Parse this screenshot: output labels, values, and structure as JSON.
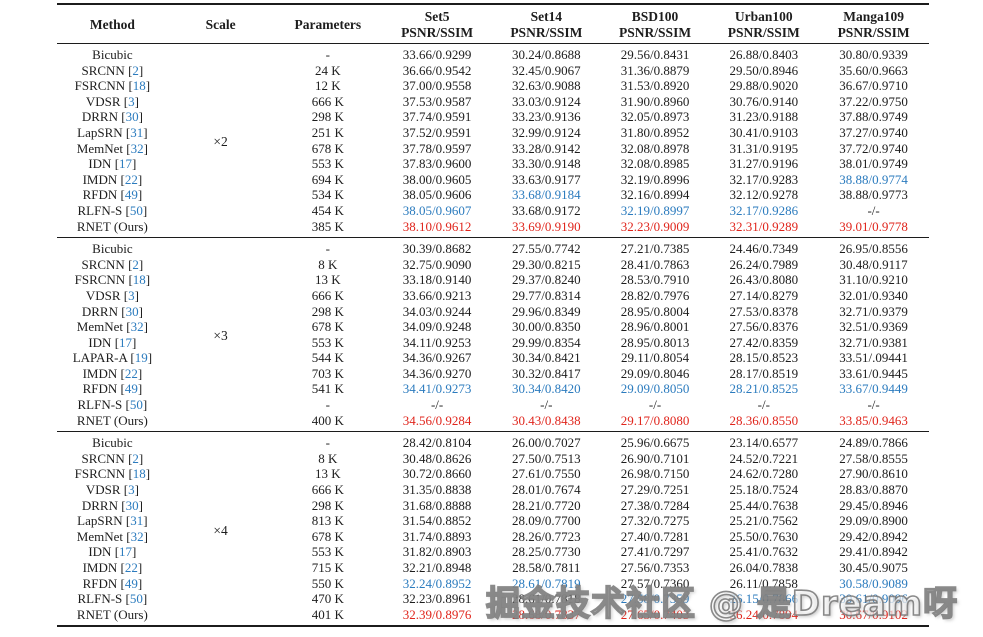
{
  "colors": {
    "best_red": "#e0251c",
    "second_blue": "#2b7bbe",
    "citation_blue": "#2b7bbe",
    "text": "#1d1d1d",
    "rule": "#1c1c1c"
  },
  "header": {
    "columns": [
      {
        "label": "Method",
        "sub": ""
      },
      {
        "label": "Scale",
        "sub": ""
      },
      {
        "label": "Parameters",
        "sub": ""
      },
      {
        "label": "Set5",
        "sub": "PSNR/SSIM"
      },
      {
        "label": "Set14",
        "sub": "PSNR/SSIM"
      },
      {
        "label": "BSD100",
        "sub": "PSNR/SSIM"
      },
      {
        "label": "Urban100",
        "sub": "PSNR/SSIM"
      },
      {
        "label": "Manga109",
        "sub": "PSNR/SSIM"
      }
    ]
  },
  "groups": [
    {
      "scale": "×2",
      "rows": [
        {
          "method": "Bicubic",
          "cite": "",
          "params": "-",
          "cells": [
            "33.66/0.9299",
            "30.24/0.8688",
            "29.56/0.8431",
            "26.88/0.8403",
            "30.80/0.9339"
          ],
          "colors": [
            "k",
            "k",
            "k",
            "k",
            "k"
          ]
        },
        {
          "method": "SRCNN",
          "cite": "2",
          "params": "24 K",
          "cells": [
            "36.66/0.9542",
            "32.45/0.9067",
            "31.36/0.8879",
            "29.50/0.8946",
            "35.60/0.9663"
          ],
          "colors": [
            "k",
            "k",
            "k",
            "k",
            "k"
          ]
        },
        {
          "method": "FSRCNN",
          "cite": "18",
          "params": "12 K",
          "cells": [
            "37.00/0.9558",
            "32.63/0.9088",
            "31.53/0.8920",
            "29.88/0.9020",
            "36.67/0.9710"
          ],
          "colors": [
            "k",
            "k",
            "k",
            "k",
            "k"
          ]
        },
        {
          "method": "VDSR",
          "cite": "3",
          "params": "666 K",
          "cells": [
            "37.53/0.9587",
            "33.03/0.9124",
            "31.90/0.8960",
            "30.76/0.9140",
            "37.22/0.9750"
          ],
          "colors": [
            "k",
            "k",
            "k",
            "k",
            "k"
          ]
        },
        {
          "method": "DRRN",
          "cite": "30",
          "params": "298 K",
          "cells": [
            "37.74/0.9591",
            "33.23/0.9136",
            "32.05/0.8973",
            "31.23/0.9188",
            "37.88/0.9749"
          ],
          "colors": [
            "k",
            "k",
            "k",
            "k",
            "k"
          ]
        },
        {
          "method": "LapSRN",
          "cite": "31",
          "params": "251 K",
          "cells": [
            "37.52/0.9591",
            "32.99/0.9124",
            "31.80/0.8952",
            "30.41/0.9103",
            "37.27/0.9740"
          ],
          "colors": [
            "k",
            "k",
            "k",
            "k",
            "k"
          ]
        },
        {
          "method": "MemNet",
          "cite": "32",
          "params": "678 K",
          "cells": [
            "37.78/0.9597",
            "33.28/0.9142",
            "32.08/0.8978",
            "31.31/0.9195",
            "37.72/0.9740"
          ],
          "colors": [
            "k",
            "k",
            "k",
            "k",
            "k"
          ]
        },
        {
          "method": "IDN",
          "cite": "17",
          "params": "553 K",
          "cells": [
            "37.83/0.9600",
            "33.30/0.9148",
            "32.08/0.8985",
            "31.27/0.9196",
            "38.01/0.9749"
          ],
          "colors": [
            "k",
            "k",
            "k",
            "k",
            "k"
          ]
        },
        {
          "method": "IMDN",
          "cite": "22",
          "params": "694 K",
          "cells": [
            "38.00/0.9605",
            "33.63/0.9177",
            "32.19/0.8996",
            "32.17/0.9283",
            "38.88/0.9774"
          ],
          "colors": [
            "k",
            "k",
            "k",
            "k",
            "b"
          ]
        },
        {
          "method": "RFDN",
          "cite": "49",
          "params": "534 K",
          "cells": [
            "38.05/0.9606",
            "33.68/0.9184",
            "32.16/0.8994",
            "32.12/0.9278",
            "38.88/0.9773"
          ],
          "colors": [
            "k",
            "b",
            "k",
            "k",
            "k"
          ]
        },
        {
          "method": "RLFN-S",
          "cite": "50",
          "params": "454 K",
          "cells": [
            "38.05/0.9607",
            "33.68/0.9172",
            "32.19/0.8997",
            "32.17/0.9286",
            "-/-"
          ],
          "colors": [
            "b",
            "k",
            "b",
            "b",
            "k"
          ]
        },
        {
          "method": "RNET (Ours)",
          "cite": "",
          "params": "385 K",
          "cells": [
            "38.10/0.9612",
            "33.69/0.9190",
            "32.23/0.9009",
            "32.31/0.9289",
            "39.01/0.9778"
          ],
          "colors": [
            "r",
            "r",
            "r",
            "r",
            "r"
          ]
        }
      ]
    },
    {
      "scale": "×3",
      "rows": [
        {
          "method": "Bicubic",
          "cite": "",
          "params": "-",
          "cells": [
            "30.39/0.8682",
            "27.55/0.7742",
            "27.21/0.7385",
            "24.46/0.7349",
            "26.95/0.8556"
          ],
          "colors": [
            "k",
            "k",
            "k",
            "k",
            "k"
          ]
        },
        {
          "method": "SRCNN",
          "cite": "2",
          "params": "8 K",
          "cells": [
            "32.75/0.9090",
            "29.30/0.8215",
            "28.41/0.7863",
            "26.24/0.7989",
            "30.48/0.9117"
          ],
          "colors": [
            "k",
            "k",
            "k",
            "k",
            "k"
          ]
        },
        {
          "method": "FSRCNN",
          "cite": "18",
          "params": "13 K",
          "cells": [
            "33.18/0.9140",
            "29.37/0.8240",
            "28.53/0.7910",
            "26.43/0.8080",
            "31.10/0.9210"
          ],
          "colors": [
            "k",
            "k",
            "k",
            "k",
            "k"
          ]
        },
        {
          "method": "VDSR",
          "cite": "3",
          "params": "666 K",
          "cells": [
            "33.66/0.9213",
            "29.77/0.8314",
            "28.82/0.7976",
            "27.14/0.8279",
            "32.01/0.9340"
          ],
          "colors": [
            "k",
            "k",
            "k",
            "k",
            "k"
          ]
        },
        {
          "method": "DRRN",
          "cite": "30",
          "params": "298 K",
          "cells": [
            "34.03/0.9244",
            "29.96/0.8349",
            "28.95/0.8004",
            "27.53/0.8378",
            "32.71/0.9379"
          ],
          "colors": [
            "k",
            "k",
            "k",
            "k",
            "k"
          ]
        },
        {
          "method": "MemNet",
          "cite": "32",
          "params": "678 K",
          "cells": [
            "34.09/0.9248",
            "30.00/0.8350",
            "28.96/0.8001",
            "27.56/0.8376",
            "32.51/0.9369"
          ],
          "colors": [
            "k",
            "k",
            "k",
            "k",
            "k"
          ]
        },
        {
          "method": "IDN",
          "cite": "17",
          "params": "553 K",
          "cells": [
            "34.11/0.9253",
            "29.99/0.8354",
            "28.95/0.8013",
            "27.42/0.8359",
            "32.71/0.9381"
          ],
          "colors": [
            "k",
            "k",
            "k",
            "k",
            "k"
          ]
        },
        {
          "method": "LAPAR-A",
          "cite": "19",
          "params": "544 K",
          "cells": [
            "34.36/0.9267",
            "30.34/0.8421",
            "29.11/0.8054",
            "28.15/0.8523",
            "33.51/.09441"
          ],
          "colors": [
            "k",
            "k",
            "k",
            "k",
            "k"
          ]
        },
        {
          "method": "IMDN",
          "cite": "22",
          "params": "703 K",
          "cells": [
            "34.36/0.9270",
            "30.32/0.8417",
            "29.09/0.8046",
            "28.17/0.8519",
            "33.61/0.9445"
          ],
          "colors": [
            "k",
            "k",
            "k",
            "k",
            "k"
          ]
        },
        {
          "method": "RFDN",
          "cite": "49",
          "params": "541 K",
          "cells": [
            "34.41/0.9273",
            "30.34/0.8420",
            "29.09/0.8050",
            "28.21/0.8525",
            "33.67/0.9449"
          ],
          "colors": [
            "b",
            "b",
            "b",
            "b",
            "b"
          ]
        },
        {
          "method": "RLFN-S",
          "cite": "50",
          "params": "-",
          "cells": [
            "-/-",
            "-/-",
            "-/-",
            "-/-",
            "-/-"
          ],
          "colors": [
            "k",
            "k",
            "k",
            "k",
            "k"
          ]
        },
        {
          "method": "RNET (Ours)",
          "cite": "",
          "params": "400 K",
          "cells": [
            "34.56/0.9284",
            "30.43/0.8438",
            "29.17/0.8080",
            "28.36/0.8550",
            "33.85/0.9463"
          ],
          "colors": [
            "r",
            "r",
            "r",
            "r",
            "r"
          ]
        }
      ]
    },
    {
      "scale": "×4",
      "rows": [
        {
          "method": "Bicubic",
          "cite": "",
          "params": "-",
          "cells": [
            "28.42/0.8104",
            "26.00/0.7027",
            "25.96/0.6675",
            "23.14/0.6577",
            "24.89/0.7866"
          ],
          "colors": [
            "k",
            "k",
            "k",
            "k",
            "k"
          ]
        },
        {
          "method": "SRCNN",
          "cite": "2",
          "params": "8 K",
          "cells": [
            "30.48/0.8626",
            "27.50/0.7513",
            "26.90/0.7101",
            "24.52/0.7221",
            "27.58/0.8555"
          ],
          "colors": [
            "k",
            "k",
            "k",
            "k",
            "k"
          ]
        },
        {
          "method": "FSRCNN",
          "cite": "18",
          "params": "13 K",
          "cells": [
            "30.72/0.8660",
            "27.61/0.7550",
            "26.98/0.7150",
            "24.62/0.7280",
            "27.90/0.8610"
          ],
          "colors": [
            "k",
            "k",
            "k",
            "k",
            "k"
          ]
        },
        {
          "method": "VDSR",
          "cite": "3",
          "params": "666 K",
          "cells": [
            "31.35/0.8838",
            "28.01/0.7674",
            "27.29/0.7251",
            "25.18/0.7524",
            "28.83/0.8870"
          ],
          "colors": [
            "k",
            "k",
            "k",
            "k",
            "k"
          ]
        },
        {
          "method": "DRRN",
          "cite": "30",
          "params": "298 K",
          "cells": [
            "31.68/0.8888",
            "28.21/0.7720",
            "27.38/0.7284",
            "25.44/0.7638",
            "29.45/0.8946"
          ],
          "colors": [
            "k",
            "k",
            "k",
            "k",
            "k"
          ]
        },
        {
          "method": "LapSRN",
          "cite": "31",
          "params": "813 K",
          "cells": [
            "31.54/0.8852",
            "28.09/0.7700",
            "27.32/0.7275",
            "25.21/0.7562",
            "29.09/0.8900"
          ],
          "colors": [
            "k",
            "k",
            "k",
            "k",
            "k"
          ]
        },
        {
          "method": "MemNet",
          "cite": "32",
          "params": "678 K",
          "cells": [
            "31.74/0.8893",
            "28.26/0.7723",
            "27.40/0.7281",
            "25.50/0.7630",
            "29.42/0.8942"
          ],
          "colors": [
            "k",
            "k",
            "k",
            "k",
            "k"
          ]
        },
        {
          "method": "IDN",
          "cite": "17",
          "params": "553 K",
          "cells": [
            "31.82/0.8903",
            "28.25/0.7730",
            "27.41/0.7297",
            "25.41/0.7632",
            "29.41/0.8942"
          ],
          "colors": [
            "k",
            "k",
            "k",
            "k",
            "k"
          ]
        },
        {
          "method": "IMDN",
          "cite": "22",
          "params": "715 K",
          "cells": [
            "32.21/0.8948",
            "28.58/0.7811",
            "27.56/0.7353",
            "26.04/0.7838",
            "30.45/0.9075"
          ],
          "colors": [
            "k",
            "k",
            "k",
            "k",
            "k"
          ]
        },
        {
          "method": "RFDN",
          "cite": "49",
          "params": "550 K",
          "cells": [
            "32.24/0.8952",
            "28.61/0.7819",
            "27.57/0.7360",
            "26.11/0.7858",
            "30.58/0.9089"
          ],
          "colors": [
            "b",
            "b",
            "k",
            "k",
            "b"
          ]
        },
        {
          "method": "RLFN-S",
          "cite": "50",
          "params": "470 K",
          "cells": [
            "32.23/0.8961",
            "28.61/0.7818",
            "27.58/0.7359",
            "26.15/0.7866",
            "30.61/0.9096"
          ],
          "colors": [
            "k",
            "k",
            "b",
            "b",
            "b"
          ]
        },
        {
          "method": "RNET (Ours)",
          "cite": "",
          "params": "401 K",
          "cells": [
            "32.39/0.8976",
            "28.68/0.7837",
            "27.65/0.7403",
            "26.24/0.7894",
            "30.67/0.9102"
          ],
          "colors": [
            "r",
            "r",
            "r",
            "r",
            "r"
          ]
        }
      ]
    }
  ],
  "watermark": {
    "text": "掘金技术社区 @ 是Dream呀"
  }
}
